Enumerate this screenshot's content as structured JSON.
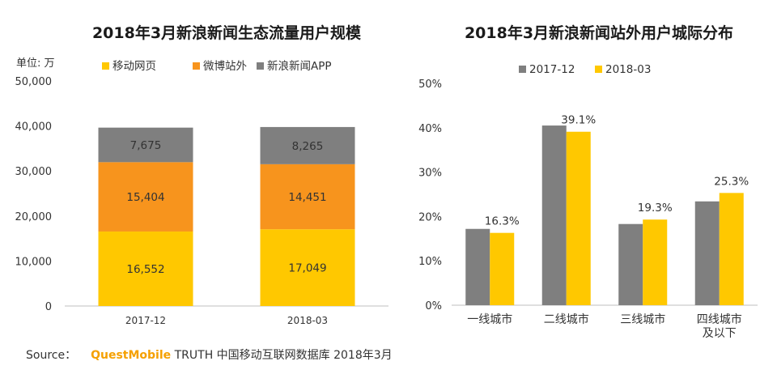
{
  "source": {
    "label": "Source：",
    "brand": "QuestMobile",
    "text": "TRUTH 中国移动互联网数据库 2018年3月"
  },
  "colors": {
    "yellow": "#ffc800",
    "orange": "#f7941d",
    "gray": "#7f7f7f",
    "axis": "#bfbfbf"
  },
  "chart_data": [
    {
      "type": "bar",
      "stacked": true,
      "title": "2018年3月新浪新闻生态流量用户规模",
      "unit_label": "单位: 万",
      "categories": [
        "2017-12",
        "2018-03"
      ],
      "ylim": [
        0,
        50000
      ],
      "yticks": [
        "0",
        "10,000",
        "20,000",
        "30,000",
        "40,000",
        "50,000"
      ],
      "legend_position": "top",
      "series": [
        {
          "name": "移动网页",
          "color": "#ffc800",
          "values": [
            16552,
            17049
          ],
          "labels": [
            "16,552",
            "17,049"
          ]
        },
        {
          "name": "微博站外",
          "color": "#f7941d",
          "values": [
            15404,
            14451
          ],
          "labels": [
            "15,404",
            "14,451"
          ]
        },
        {
          "name": "新浪新闻APP",
          "color": "#7f7f7f",
          "values": [
            7675,
            8265
          ],
          "labels": [
            "7,675",
            "8,265"
          ]
        }
      ]
    },
    {
      "type": "bar",
      "stacked": false,
      "title": "2018年3月新浪新闻站外用户城际分布",
      "categories": [
        "一线城市",
        "二线城市",
        "三线城市",
        "四线城市及以下"
      ],
      "category_lines": [
        [
          "一线城市"
        ],
        [
          "二线城市"
        ],
        [
          "三线城市"
        ],
        [
          "四线城市",
          "及以下"
        ]
      ],
      "ylim": [
        0,
        50
      ],
      "yticks": [
        "0%",
        "10%",
        "20%",
        "30%",
        "40%",
        "50%"
      ],
      "legend_position": "top",
      "series": [
        {
          "name": "2017-12",
          "color": "#7f7f7f",
          "values": [
            17.2,
            40.5,
            18.3,
            23.4
          ]
        },
        {
          "name": "2018-03",
          "color": "#ffc800",
          "values": [
            16.3,
            39.1,
            19.3,
            25.3
          ],
          "labels": [
            "16.3%",
            "39.1%",
            "19.3%",
            "25.3%"
          ]
        }
      ]
    }
  ]
}
